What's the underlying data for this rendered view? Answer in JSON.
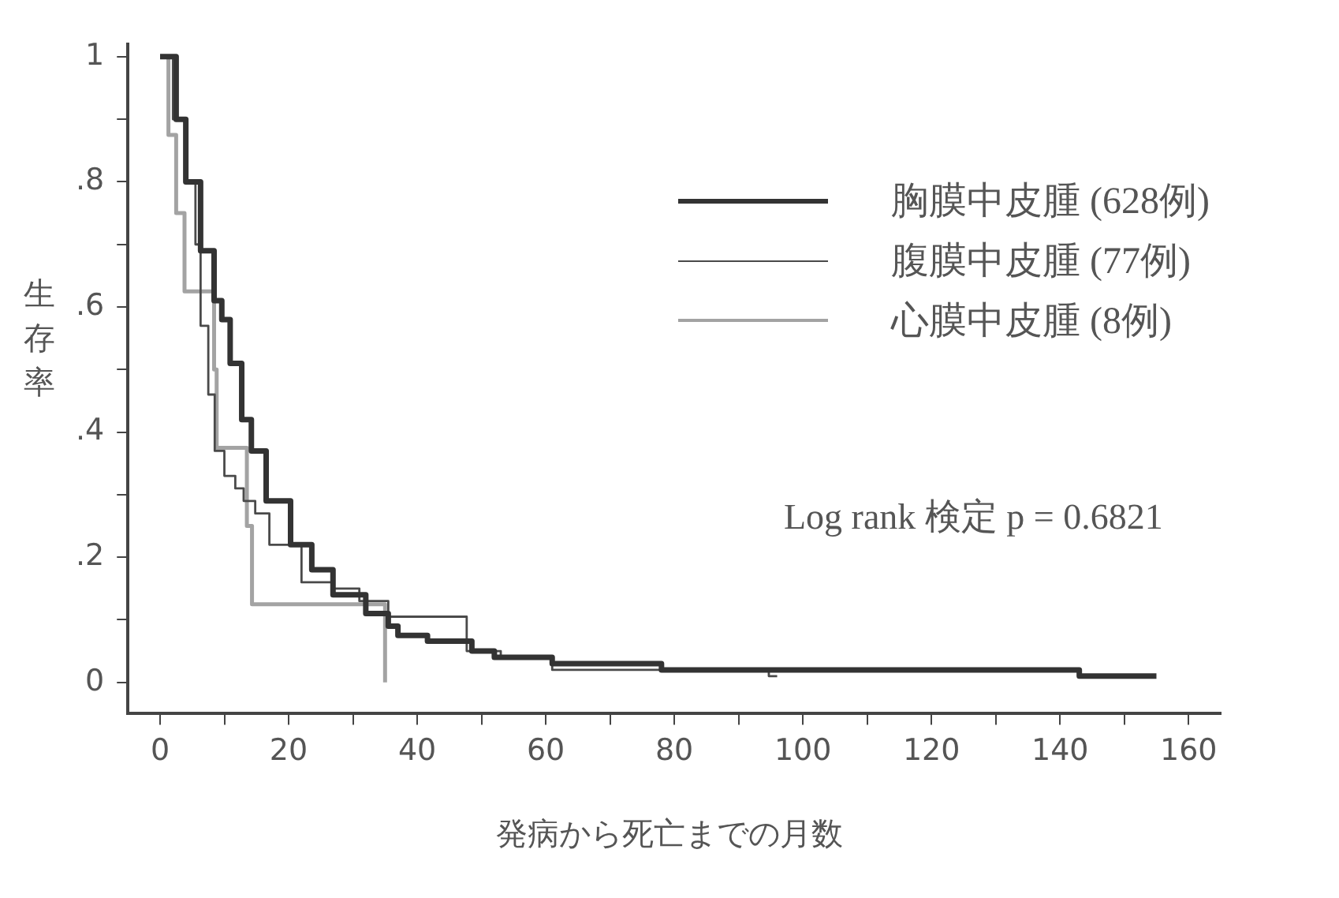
{
  "chart_data": {
    "type": "step",
    "xlabel": "発病から死亡までの月数",
    "ylabel": "生存率",
    "xlim": [
      -5,
      165
    ],
    "ylim": [
      -0.05,
      1.02
    ],
    "xticks": [
      0,
      {
        "value": 10,
        "label": null
      },
      20,
      {
        "value": 30,
        "label": null
      },
      40,
      {
        "value": 50,
        "label": null
      },
      60,
      {
        "value": 70,
        "label": null
      },
      80,
      {
        "value": 90,
        "label": null
      },
      100,
      {
        "value": 110,
        "label": null
      },
      120,
      {
        "value": 130,
        "label": null
      },
      140,
      {
        "value": 150,
        "label": null
      },
      160
    ],
    "yticks": [
      {
        "value": 0,
        "label": "0"
      },
      {
        "value": 0.1,
        "label": null
      },
      {
        "value": 0.2,
        "label": ".2"
      },
      {
        "value": 0.3,
        "label": null
      },
      {
        "value": 0.4,
        "label": ".4"
      },
      {
        "value": 0.5,
        "label": null
      },
      {
        "value": 0.6,
        "label": ".6"
      },
      {
        "value": 0.7,
        "label": null
      },
      {
        "value": 0.8,
        "label": ".8"
      },
      {
        "value": 0.9,
        "label": null
      },
      {
        "value": 1,
        "label": "1"
      }
    ],
    "grid": false,
    "legend": "top right",
    "marker": "none",
    "line_style": "solid",
    "annotations": [
      "Log rank 検定  p = 0.6821"
    ],
    "series": [
      {
        "name": "胸膜中皮腫 (628例)",
        "color": "#333333",
        "x": [
          0,
          2.5,
          4,
          6.3,
          8.4,
          9.6,
          10.9,
          12.7,
          14.2,
          16.5,
          20.3,
          23.6,
          26.9,
          32,
          35.5,
          37,
          41.6,
          48.5,
          52,
          61,
          78,
          143,
          155
        ],
        "values": [
          1,
          0.9,
          0.8,
          0.69,
          0.61,
          0.58,
          0.51,
          0.42,
          0.37,
          0.29,
          0.22,
          0.18,
          0.14,
          0.11,
          0.09,
          0.075,
          0.066,
          0.05,
          0.04,
          0.03,
          0.02,
          0.01,
          0.01
        ]
      },
      {
        "name": "腹膜中皮腫 (77例)",
        "color": "#4a4a4a",
        "x": [
          0,
          2,
          4,
          5.5,
          6.3,
          7.5,
          8.5,
          10,
          11.7,
          13,
          14.8,
          17,
          22,
          27,
          31,
          35.5,
          47.7,
          53,
          61,
          94.7,
          96
        ],
        "values": [
          1,
          0.9,
          0.8,
          0.7,
          0.57,
          0.46,
          0.37,
          0.33,
          0.31,
          0.29,
          0.27,
          0.22,
          0.16,
          0.15,
          0.13,
          0.105,
          0.05,
          0.038,
          0.02,
          0.01,
          0.01
        ]
      },
      {
        "name": "心膜中皮腫 (8例)",
        "color": "#a3a3a3",
        "x": [
          0,
          1.3,
          2.5,
          3.8,
          8.4,
          8.8,
          13.5,
          14.3,
          35
        ],
        "values": [
          1,
          0.875,
          0.75,
          0.625,
          0.5,
          0.375,
          0.25,
          0.125,
          0
        ]
      }
    ]
  }
}
